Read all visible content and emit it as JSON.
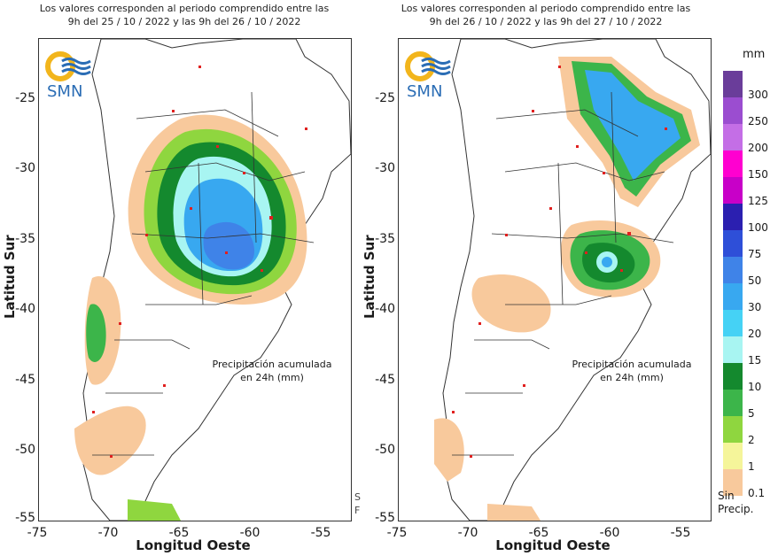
{
  "panels": [
    {
      "title_line1": "Los valores corresponden al periodo comprendido entre las",
      "title_line2": "9h del 25 / 10 / 2022  y las 9h del 26 / 10 / 2022",
      "annotation_line1": "Precipitación acumulada",
      "annotation_line2": "en 24h (mm)"
    },
    {
      "title_line1": "Los valores corresponden al periodo comprendido entre las",
      "title_line2": "9h del 26 / 10 / 2022  y las 9h del 27 / 10 / 2022",
      "annotation_line1": "Precipitación acumulada",
      "annotation_line2": "en 24h (mm)"
    }
  ],
  "logo": {
    "text": "SMN",
    "icon": "smn-sun-waves-logo"
  },
  "axes": {
    "xlabel": "Longitud Oeste",
    "ylabel": "Latitud Sur",
    "xticks": [
      "-75",
      "-70",
      "-65",
      "-60",
      "-55"
    ],
    "yticks": [
      "-25",
      "-30",
      "-35",
      "-40",
      "-45",
      "-50",
      "-55"
    ],
    "x_range": [
      -75,
      -53
    ],
    "y_range": [
      -55,
      -21
    ]
  },
  "legend": {
    "unit": "mm",
    "labels": [
      "300",
      "250",
      "200",
      "150",
      "125",
      "100",
      "75",
      "50",
      "30",
      "20",
      "15",
      "10",
      "5",
      "2",
      "1",
      "0.1"
    ],
    "colors": [
      "#6a3d9a",
      "#9b4dd0",
      "#c46ee6",
      "#ff00d0",
      "#c800c8",
      "#2b1fb0",
      "#2e4fd8",
      "#3f83e8",
      "#38a8f0",
      "#45d2f5",
      "#a8f5f2",
      "#14892e",
      "#3cb54a",
      "#8fd63f",
      "#f5f59a",
      "#f8c99c"
    ],
    "no_precip_line1": "Sin",
    "no_precip_line2": "Precip."
  },
  "edge_fragments": [
    "S",
    "F"
  ]
}
